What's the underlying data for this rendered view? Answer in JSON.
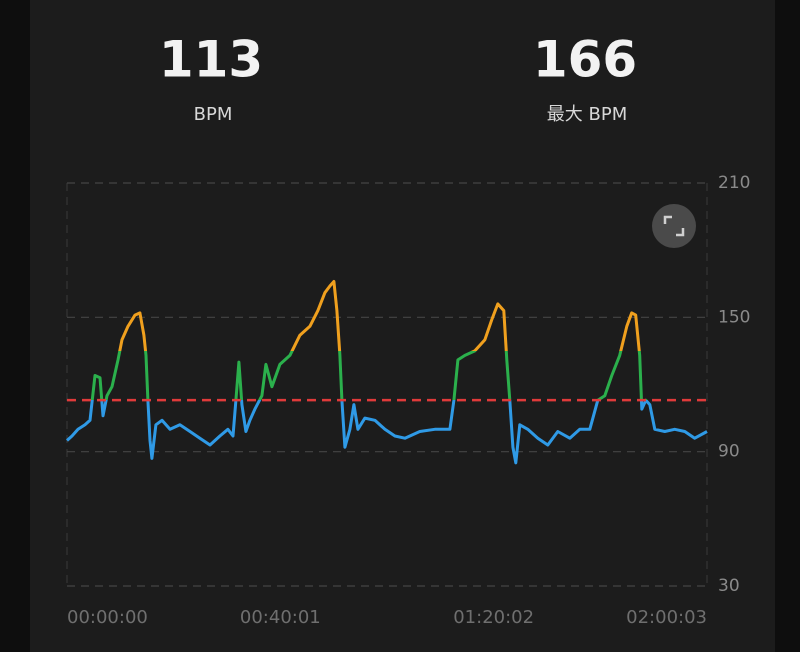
{
  "stats": [
    {
      "value": 113,
      "label": "BPM"
    },
    {
      "value": 166,
      "label": "最大 BPM"
    }
  ],
  "chart_data": {
    "type": "line",
    "x": [
      0,
      56,
      124,
      203,
      259,
      315,
      371,
      405,
      450,
      506,
      574,
      619,
      686,
      765,
      821,
      866,
      889,
      911,
      934,
      956,
      1001,
      1069,
      1159,
      1271,
      1384,
      1496,
      1609,
      1721,
      1811,
      1868,
      1901,
      1935,
      1969,
      2014,
      2059,
      2115,
      2194,
      2239,
      2306,
      2396,
      2509,
      2621,
      2734,
      2824,
      2903,
      2959,
      3004,
      3038,
      3071,
      3094,
      3128,
      3184,
      3229,
      3274,
      3353,
      3465,
      3578,
      3690,
      3803,
      3971,
      4140,
      4309,
      4354,
      4399,
      4478,
      4590,
      4703,
      4781,
      4849,
      4916,
      4950,
      4984,
      5018,
      5051,
      5096,
      5186,
      5299,
      5411,
      5524,
      5659,
      5771,
      5884,
      5974,
      6053,
      6131,
      6221,
      6300,
      6356,
      6401,
      6446,
      6469,
      6514,
      6559,
      6615,
      6728,
      6840,
      6953,
      7065,
      7203
    ],
    "values": [
      95,
      97,
      100,
      102,
      104,
      124,
      123,
      106,
      115,
      119,
      131,
      140,
      146,
      151,
      152,
      142,
      133,
      113,
      95,
      87,
      102,
      104,
      100,
      102,
      99,
      96,
      93,
      97,
      100,
      97,
      113,
      130,
      111,
      99,
      104,
      109,
      115,
      129,
      119,
      129,
      133,
      142,
      146,
      153,
      161,
      164,
      166,
      153,
      133,
      113,
      92,
      100,
      111,
      100,
      105,
      104,
      100,
      97,
      96,
      99,
      100,
      100,
      113,
      131,
      133,
      135,
      140,
      149,
      156,
      153,
      131,
      113,
      92,
      85,
      102,
      100,
      96,
      93,
      99,
      96,
      100,
      100,
      113,
      115,
      124,
      133,
      146,
      152,
      151,
      133,
      109,
      113,
      111,
      100,
      99,
      100,
      99,
      96,
      99
    ],
    "color_zones": [
      {
        "from": 30,
        "color": "#2f9ae6"
      },
      {
        "from": 113,
        "color": "#2bb04c"
      },
      {
        "from": 135,
        "color": "#f0a01e"
      }
    ],
    "average_color": "#e03a3a",
    "xlim": [
      0,
      7203
    ],
    "xticks": [
      {
        "value": 0,
        "label": "00:00:00"
      },
      {
        "value": 2401,
        "label": "00:40:01"
      },
      {
        "value": 4802,
        "label": "01:20:02"
      },
      {
        "value": 7203,
        "label": "02:00:03"
      }
    ],
    "ylim": [
      30,
      210
    ],
    "yticks": [
      30,
      90,
      150,
      210
    ],
    "grid": true
  }
}
